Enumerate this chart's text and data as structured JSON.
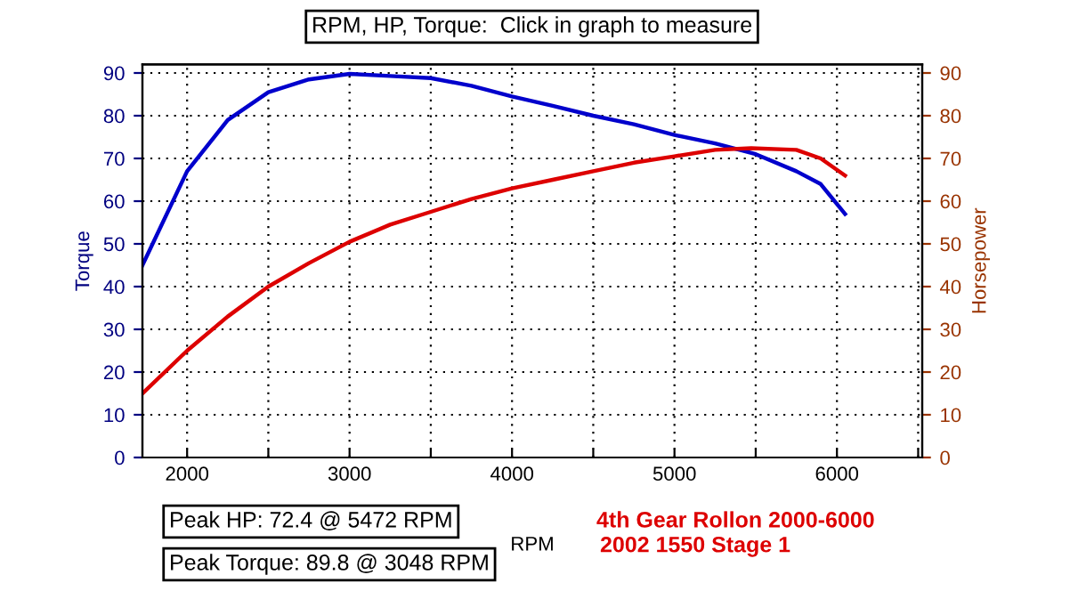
{
  "chart_data": {
    "type": "line",
    "title": "RPM, HP, Torque:  Click in graph to measure",
    "xlabel": "RPM",
    "ylabel": "Torque",
    "y2label": "Horsepower",
    "annotations": [
      "Peak HP: 72.4 @ 5472 RPM",
      "Peak Torque: 89.8 @ 3048 RPM",
      "4th Gear Rollon 2000-6000",
      "2002 1550 Stage 1"
    ],
    "xlim": [
      1725,
      6525
    ],
    "xticks": [
      2000,
      {
        "value": 2500,
        "label": null
      },
      3000,
      {
        "value": 3500,
        "label": null
      },
      4000,
      {
        "value": 4500,
        "label": null
      },
      5000,
      {
        "value": 5500,
        "label": null
      },
      6000,
      {
        "value": 6500,
        "label": null
      }
    ],
    "ylim": [
      0,
      92
    ],
    "yticks": [
      0,
      10,
      20,
      30,
      40,
      50,
      60,
      70,
      80,
      90
    ],
    "y2lim": [
      0,
      92
    ],
    "y2ticks": [
      0,
      10,
      20,
      30,
      40,
      50,
      60,
      70,
      80,
      90
    ],
    "grid": true,
    "legend": false,
    "series": [
      {
        "color": "#0000cc",
        "x": [
          1725,
          2000,
          2250,
          2500,
          2750,
          3000,
          3250,
          3500,
          3750,
          4000,
          4250,
          4500,
          4750,
          5000,
          5250,
          5500,
          5750,
          5900,
          6050
        ],
        "values": [
          45,
          67,
          79,
          85.5,
          88.5,
          89.8,
          89.3,
          88.8,
          87,
          84.5,
          82.3,
          80,
          78,
          75.5,
          73.5,
          71,
          67,
          64,
          57
        ]
      },
      {
        "color": "#dd0000",
        "axis": "y2",
        "x": [
          1725,
          2000,
          2250,
          2500,
          2750,
          3000,
          3250,
          3500,
          3750,
          4000,
          4250,
          4500,
          4750,
          5000,
          5250,
          5472,
          5750,
          5900,
          6050
        ],
        "values": [
          15,
          25,
          33,
          40,
          45.5,
          50.5,
          54.5,
          57.5,
          60.5,
          63,
          65,
          67,
          69,
          70.5,
          72,
          72.4,
          72,
          70,
          66
        ]
      }
    ]
  }
}
